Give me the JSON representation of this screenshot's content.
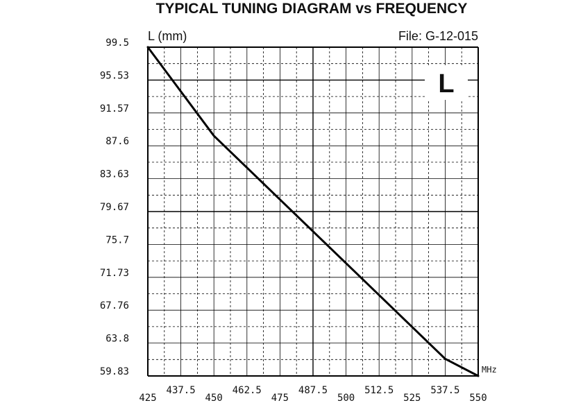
{
  "chart_data": {
    "type": "line",
    "title": "TYPICAL TUNING DIAGRAM vs FREQUENCY",
    "ylabel": "L (mm)",
    "file_label": "File:  G-12-015",
    "badge": "L",
    "x_unit": "MHz",
    "xlim": [
      425,
      550
    ],
    "ylim": [
      59.83,
      99.5
    ],
    "x_ticks_major": [
      "425",
      "450",
      "475",
      "500",
      "525",
      "550"
    ],
    "x_ticks_minor": [
      "437.5",
      "462.5",
      "487.5",
      "512.5",
      "537.5"
    ],
    "y_ticks": [
      "99.5",
      "95.53",
      "91.57",
      "87.6",
      "83.63",
      "79.67",
      "75.7",
      "71.73",
      "67.76",
      "63.8",
      "59.83"
    ],
    "grid": true,
    "series": [
      {
        "x": [
          425,
          450,
          537.5,
          550
        ],
        "y": [
          99.5,
          88.8,
          61.9,
          59.83
        ]
      }
    ]
  }
}
